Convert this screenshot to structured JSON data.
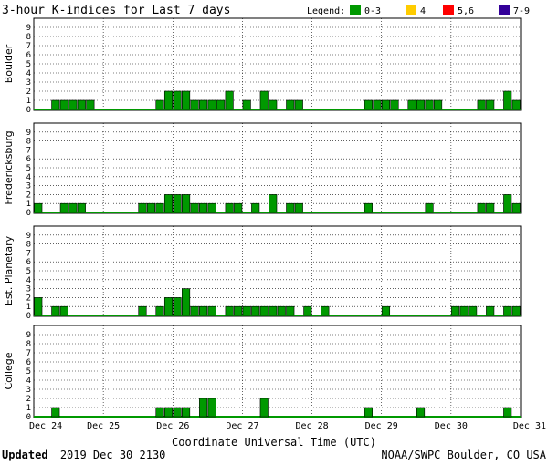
{
  "title": "3-hour K-indices for Last 7 days",
  "legend": {
    "label": "Legend:",
    "items": [
      {
        "label": "0-3",
        "color": "#009900"
      },
      {
        "label": "4",
        "color": "#ffcc00"
      },
      {
        "label": "5,6",
        "color": "#ff0000"
      },
      {
        "label": "7-9",
        "color": "#330099"
      }
    ]
  },
  "footer": {
    "updated_label": "Updated",
    "updated_value": "2019 Dec 30 2130",
    "source": "NOAA/SWPC Boulder, CO USA"
  },
  "chart_data": {
    "type": "bar",
    "xlabel": "Coordinate Universal Time (UTC)",
    "x_ticks": [
      "Dec 24",
      "Dec 25",
      "Dec 26",
      "Dec 27",
      "Dec 28",
      "Dec 29",
      "Dec 30",
      "Dec 31"
    ],
    "ylim": [
      0,
      9
    ],
    "y_ticks": [
      0,
      1,
      2,
      3,
      4,
      5,
      6,
      7,
      8,
      9
    ],
    "intervals_per_day": 8,
    "color_rule": [
      {
        "range": "0-3",
        "color": "#009900"
      },
      {
        "range": "4",
        "color": "#ffcc00"
      },
      {
        "range": "5,6",
        "color": "#ff0000"
      },
      {
        "range": "7-9",
        "color": "#330099"
      }
    ],
    "grid": true,
    "panels": [
      {
        "name": "Boulder",
        "values": [
          0,
          0,
          1,
          1,
          1,
          1,
          1,
          0,
          0,
          0,
          0,
          0,
          0,
          0,
          1,
          2,
          2,
          2,
          1,
          1,
          1,
          1,
          2,
          0,
          1,
          0,
          2,
          1,
          0,
          1,
          1,
          0,
          0,
          0,
          0,
          0,
          0,
          0,
          1,
          1,
          1,
          1,
          0,
          1,
          1,
          1,
          1,
          0,
          0,
          0,
          0,
          1,
          1,
          0,
          2,
          1
        ]
      },
      {
        "name": "Fredericksburg",
        "values": [
          1,
          0,
          0,
          1,
          1,
          1,
          0,
          0,
          0,
          0,
          0,
          0,
          1,
          1,
          1,
          2,
          2,
          2,
          1,
          1,
          1,
          0,
          1,
          1,
          0,
          1,
          0,
          2,
          0,
          1,
          1,
          0,
          0,
          0,
          0,
          0,
          0,
          0,
          1,
          0,
          0,
          0,
          0,
          0,
          0,
          1,
          0,
          0,
          0,
          0,
          0,
          1,
          1,
          0,
          2,
          1
        ]
      },
      {
        "name": "Est. Planetary",
        "values": [
          2,
          0,
          1,
          1,
          0,
          0,
          0,
          0,
          0,
          0,
          0,
          0,
          1,
          0,
          1,
          2,
          2,
          3,
          1,
          1,
          1,
          0,
          1,
          1,
          1,
          1,
          1,
          1,
          1,
          1,
          0,
          1,
          0,
          1,
          0,
          0,
          0,
          0,
          0,
          0,
          1,
          0,
          0,
          0,
          0,
          0,
          0,
          0,
          1,
          1,
          1,
          0,
          1,
          0,
          1,
          1
        ]
      },
      {
        "name": "College",
        "values": [
          0,
          0,
          1,
          0,
          0,
          0,
          0,
          0,
          0,
          0,
          0,
          0,
          0,
          0,
          1,
          1,
          1,
          1,
          0,
          2,
          2,
          0,
          0,
          0,
          0,
          0,
          2,
          0,
          0,
          0,
          0,
          0,
          0,
          0,
          0,
          0,
          0,
          0,
          1,
          0,
          0,
          0,
          0,
          0,
          1,
          0,
          0,
          0,
          0,
          0,
          0,
          0,
          0,
          0,
          1,
          0
        ]
      }
    ]
  }
}
